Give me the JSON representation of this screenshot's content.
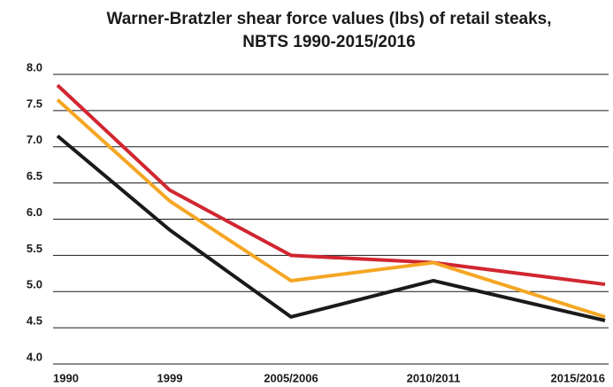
{
  "chart_data": {
    "type": "line",
    "title": [
      "Warner-Bratzler shear force values (lbs) of retail steaks,",
      "NBTS 1990-2015/2016"
    ],
    "categories": [
      "1990",
      "1999",
      "2005/2006",
      "2010/2011",
      "2015/2016"
    ],
    "series": [
      {
        "color": "#d12630",
        "values": [
          7.85,
          6.4,
          5.5,
          5.4,
          5.1
        ]
      },
      {
        "color": "#1a1a1a",
        "values": [
          7.15,
          5.85,
          4.65,
          5.15,
          4.6
        ]
      },
      {
        "color": "#f5a623",
        "values": [
          7.65,
          6.25,
          5.15,
          5.4,
          4.65
        ]
      }
    ],
    "ylim": [
      4,
      8
    ],
    "yticks": [
      {
        "value": 4,
        "label": "4.0"
      },
      4.5,
      {
        "value": 5,
        "label": "5.0"
      },
      5.5,
      {
        "value": 6,
        "label": "6.0"
      },
      6.5,
      {
        "value": 7,
        "label": "7.0"
      },
      7.5,
      {
        "value": 8,
        "label": "8.0"
      }
    ],
    "grid": true
  }
}
